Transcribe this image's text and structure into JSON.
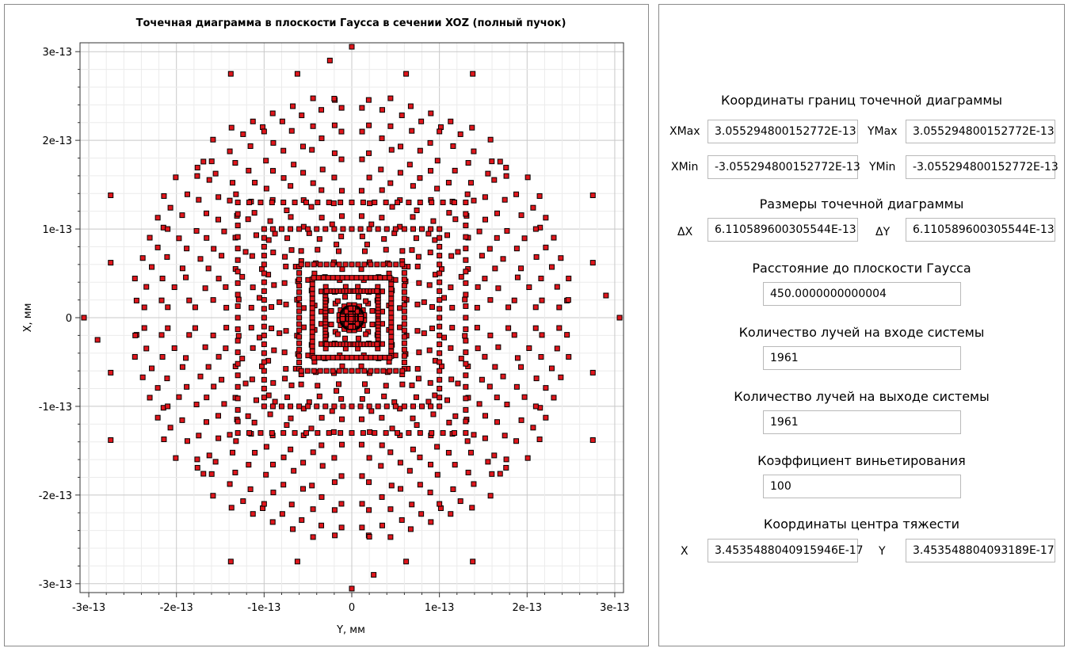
{
  "chart_data": {
    "type": "scatter",
    "title": "Точечная диаграмма в плоскости Гаусса в сечении XOZ (полный пучок)",
    "xlabel": "Y, мм",
    "ylabel": "X, мм",
    "xlim": [
      -3.1e-13,
      3.1e-13
    ],
    "ylim": [
      -3.1e-13,
      3.1e-13
    ],
    "x_ticks": [
      "-3e-13",
      "-2e-13",
      "-1e-13",
      "0",
      "1e-13",
      "2e-13",
      "3e-13"
    ],
    "y_ticks": [
      "3e-13",
      "2e-13",
      "1e-13",
      "0",
      "-1e-13",
      "-2e-13",
      "-3e-13"
    ],
    "grid": true,
    "marker": "square",
    "marker_color": "#e0161c",
    "marker_edge_color": "#000000",
    "series_points": 1961,
    "points": [
      [
        0,
        3.055e-13
      ],
      [
        0,
        -3.055e-13
      ],
      [
        3.055e-13,
        0
      ],
      [
        -3.055e-13,
        0
      ],
      [
        -2.5e-14,
        2.9e-13
      ],
      [
        2.5e-14,
        -2.9e-13
      ],
      [
        -2.9e-13,
        -2.5e-14
      ],
      [
        2.9e-13,
        2.5e-14
      ],
      [
        -1.38e-13,
        2.75e-13
      ],
      [
        1.38e-13,
        2.75e-13
      ],
      [
        -1.38e-13,
        -2.75e-13
      ],
      [
        1.38e-13,
        -2.75e-13
      ],
      [
        -6.2e-14,
        2.75e-13
      ],
      [
        6.2e-14,
        2.75e-13
      ],
      [
        -6.2e-14,
        -2.75e-13
      ],
      [
        6.2e-14,
        -2.75e-13
      ],
      [
        -2.75e-13,
        1.38e-13
      ],
      [
        2.75e-13,
        1.38e-13
      ],
      [
        -2.75e-13,
        -1.38e-13
      ],
      [
        2.75e-13,
        -1.38e-13
      ],
      [
        -2.75e-13,
        6.2e-14
      ],
      [
        2.75e-13,
        6.2e-14
      ],
      [
        -2.75e-13,
        -6.2e-14
      ],
      [
        2.75e-13,
        -6.2e-14
      ],
      [
        -1e-13,
        2.1e-13
      ],
      [
        1e-13,
        2.1e-13
      ],
      [
        -1e-13,
        -2.1e-13
      ],
      [
        1e-13,
        -2.1e-13
      ],
      [
        -2.1e-13,
        1e-13
      ],
      [
        2.1e-13,
        1e-13
      ],
      [
        -2.1e-13,
        -1e-13
      ],
      [
        2.1e-13,
        -1e-13
      ],
      [
        -2e-14,
        2.47e-13
      ],
      [
        2e-14,
        -2.47e-13
      ],
      [
        -2.47e-13,
        -2e-14
      ],
      [
        2.47e-13,
        2e-14
      ]
    ]
  },
  "panel": {
    "bounds_title": "Координаты границ точечной диаграммы",
    "xmax_label": "XMax",
    "xmax_value": "3.055294800152772E-13",
    "ymax_label": "YMax",
    "ymax_value": "3.055294800152772E-13",
    "xmin_label": "XMin",
    "xmin_value": "-3.055294800152772E-13",
    "ymin_label": "YMin",
    "ymin_value": "-3.055294800152772E-13",
    "size_title": "Размеры точечной диаграммы",
    "dx_label": "ΔX",
    "dx_value": "6.110589600305544E-13",
    "dy_label": "ΔY",
    "dy_value": "6.110589600305544E-13",
    "distance_title": "Расстояние до плоскости Гаусса",
    "distance_value": "450.0000000000004",
    "rays_in_title": "Количество лучей на входе системы",
    "rays_in_value": "1961",
    "rays_out_title": "Количество лучей на выходе системы",
    "rays_out_value": "1961",
    "vignetting_title": "Коэффициент виньетирования",
    "vignetting_value": "100",
    "centroid_title": "Координаты центра тяжести",
    "cx_label": "X",
    "cx_value": "3.4535488040915946E-17",
    "cy_label": "Y",
    "cy_value": "3.453548804093189E-17"
  }
}
